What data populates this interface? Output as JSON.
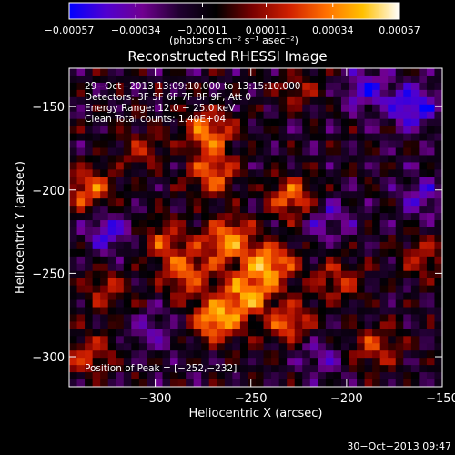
{
  "chart_data": {
    "type": "heatmap",
    "title": "Reconstructed RHESSI Image",
    "xlabel": "Heliocentric X (arcsec)",
    "ylabel": "Heliocentric Y (arcsec)",
    "xlim": [
      -345,
      -150
    ],
    "ylim": [
      -318,
      -127
    ],
    "x_ticks": [
      {
        "value": -300,
        "label": "−300"
      },
      {
        "value": -250,
        "label": "−250"
      },
      {
        "value": -200,
        "label": "−200"
      },
      {
        "value": -150,
        "label": "−150"
      }
    ],
    "y_ticks": [
      {
        "value": -150,
        "label": "−150"
      },
      {
        "value": -200,
        "label": "−200"
      },
      {
        "value": -250,
        "label": "−250"
      },
      {
        "value": -300,
        "label": "−300"
      }
    ],
    "colorbar": {
      "range": [
        -0.00057,
        0.00057
      ],
      "ticks": [
        {
          "value": -0.00057,
          "label": "−0.00057"
        },
        {
          "value": -0.00034,
          "label": "−0.00034"
        },
        {
          "value": -0.00011,
          "label": "−0.00011"
        },
        {
          "value": 0.00011,
          "label": "0.00011"
        },
        {
          "value": 0.00034,
          "label": "0.00034"
        },
        {
          "value": 0.00057,
          "label": "0.00057"
        }
      ],
      "unit_label": "(photons cm⁻² s⁻¹ asec⁻²)",
      "colors": [
        "#0000ff",
        "#5000d0",
        "#700090",
        "#200030",
        "#000000",
        "#7a0000",
        "#d02000",
        "#ff7000",
        "#ffc000",
        "#ffffff"
      ]
    },
    "annotations": [
      "29−Oct−2013 13:09:10.000 to 13:15:10.000",
      "Detectors: 3F 5F 6F 7F 8F 9F, Att 0",
      "Energy Range: 12.0 − 25.0 keV",
      "Clean     Total counts: 1.40E+04"
    ],
    "peak_label": "Position of Peak = [−252,−232]",
    "peak": {
      "x": -252,
      "y": -232
    },
    "hotspots": [
      {
        "x": -272,
        "y": -165,
        "value": 0.00045
      },
      {
        "x": -270,
        "y": -190,
        "value": 0.0004
      },
      {
        "x": -262,
        "y": -230,
        "value": 0.00052
      },
      {
        "x": -240,
        "y": -245,
        "value": 0.0005
      },
      {
        "x": -228,
        "y": -205,
        "value": 0.00042
      },
      {
        "x": -252,
        "y": -262,
        "value": 0.00046
      },
      {
        "x": -268,
        "y": -278,
        "value": 0.00055
      },
      {
        "x": -283,
        "y": -250,
        "value": 0.0004
      },
      {
        "x": -295,
        "y": -230,
        "value": 0.0003
      },
      {
        "x": -230,
        "y": -280,
        "value": 0.00038
      },
      {
        "x": -205,
        "y": -255,
        "value": 0.00028
      },
      {
        "x": -185,
        "y": -295,
        "value": 0.0003
      },
      {
        "x": -335,
        "y": -200,
        "value": 0.0004
      },
      {
        "x": -325,
        "y": -260,
        "value": 0.00025
      },
      {
        "x": -335,
        "y": -300,
        "value": 0.0003
      },
      {
        "x": -225,
        "y": -140,
        "value": 0.0002
      },
      {
        "x": -160,
        "y": -240,
        "value": 0.00025
      },
      {
        "x": -308,
        "y": -175,
        "value": 0.00022
      }
    ],
    "coldspots": [
      {
        "x": -165,
        "y": -150,
        "value": -0.0004
      },
      {
        "x": -190,
        "y": -140,
        "value": -0.0003
      },
      {
        "x": -210,
        "y": -218,
        "value": -0.00025
      },
      {
        "x": -325,
        "y": -225,
        "value": -0.00032
      },
      {
        "x": -300,
        "y": -285,
        "value": -0.0002
      },
      {
        "x": -160,
        "y": -205,
        "value": -0.00025
      },
      {
        "x": -215,
        "y": -300,
        "value": -0.00018
      }
    ]
  },
  "footer": {
    "timestamp": "30−Oct−2013 09:47"
  }
}
